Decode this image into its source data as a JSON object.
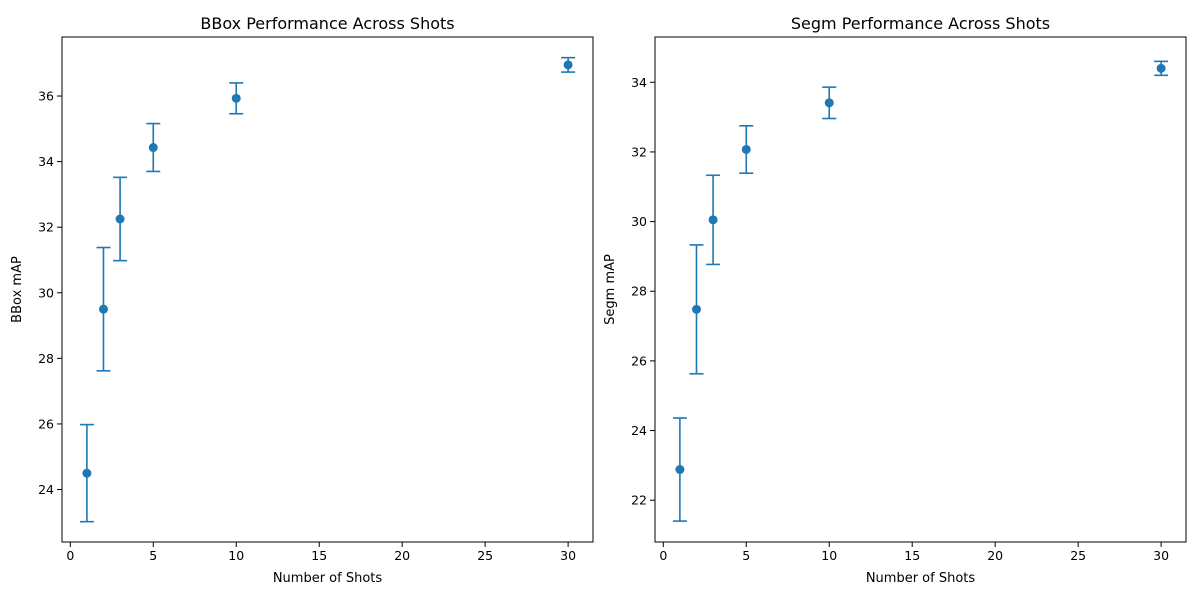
{
  "chart_data": [
    {
      "type": "scatter",
      "title": "BBox Performance Across Shots",
      "xlabel": "Number of Shots",
      "ylabel": "BBox mAP",
      "xlim": [
        -0.5,
        31.5
      ],
      "ylim": [
        22.4,
        37.8
      ],
      "xticks": [
        0,
        5,
        10,
        15,
        20,
        25,
        30
      ],
      "yticks": [
        24,
        26,
        28,
        30,
        32,
        34,
        36
      ],
      "color": "#1f77b4",
      "x": [
        1,
        2,
        3,
        5,
        10,
        30
      ],
      "y": [
        24.5,
        29.5,
        32.25,
        34.43,
        35.93,
        36.95
      ],
      "error": [
        1.48,
        1.88,
        1.27,
        0.73,
        0.47,
        0.22
      ],
      "grid": false,
      "legend": "none"
    },
    {
      "type": "scatter",
      "title": "Segm Performance Across Shots",
      "xlabel": "Number of Shots",
      "ylabel": "Segm mAP",
      "xlim": [
        -0.5,
        31.5
      ],
      "ylim": [
        20.8,
        35.3
      ],
      "xticks": [
        0,
        5,
        10,
        15,
        20,
        25,
        30
      ],
      "yticks": [
        22,
        24,
        26,
        28,
        30,
        32,
        34
      ],
      "color": "#1f77b4",
      "x": [
        1,
        2,
        3,
        5,
        10,
        30
      ],
      "y": [
        22.88,
        27.48,
        30.05,
        32.07,
        33.41,
        34.4
      ],
      "error": [
        1.48,
        1.85,
        1.28,
        0.68,
        0.45,
        0.2
      ],
      "grid": false,
      "legend": "none"
    }
  ]
}
